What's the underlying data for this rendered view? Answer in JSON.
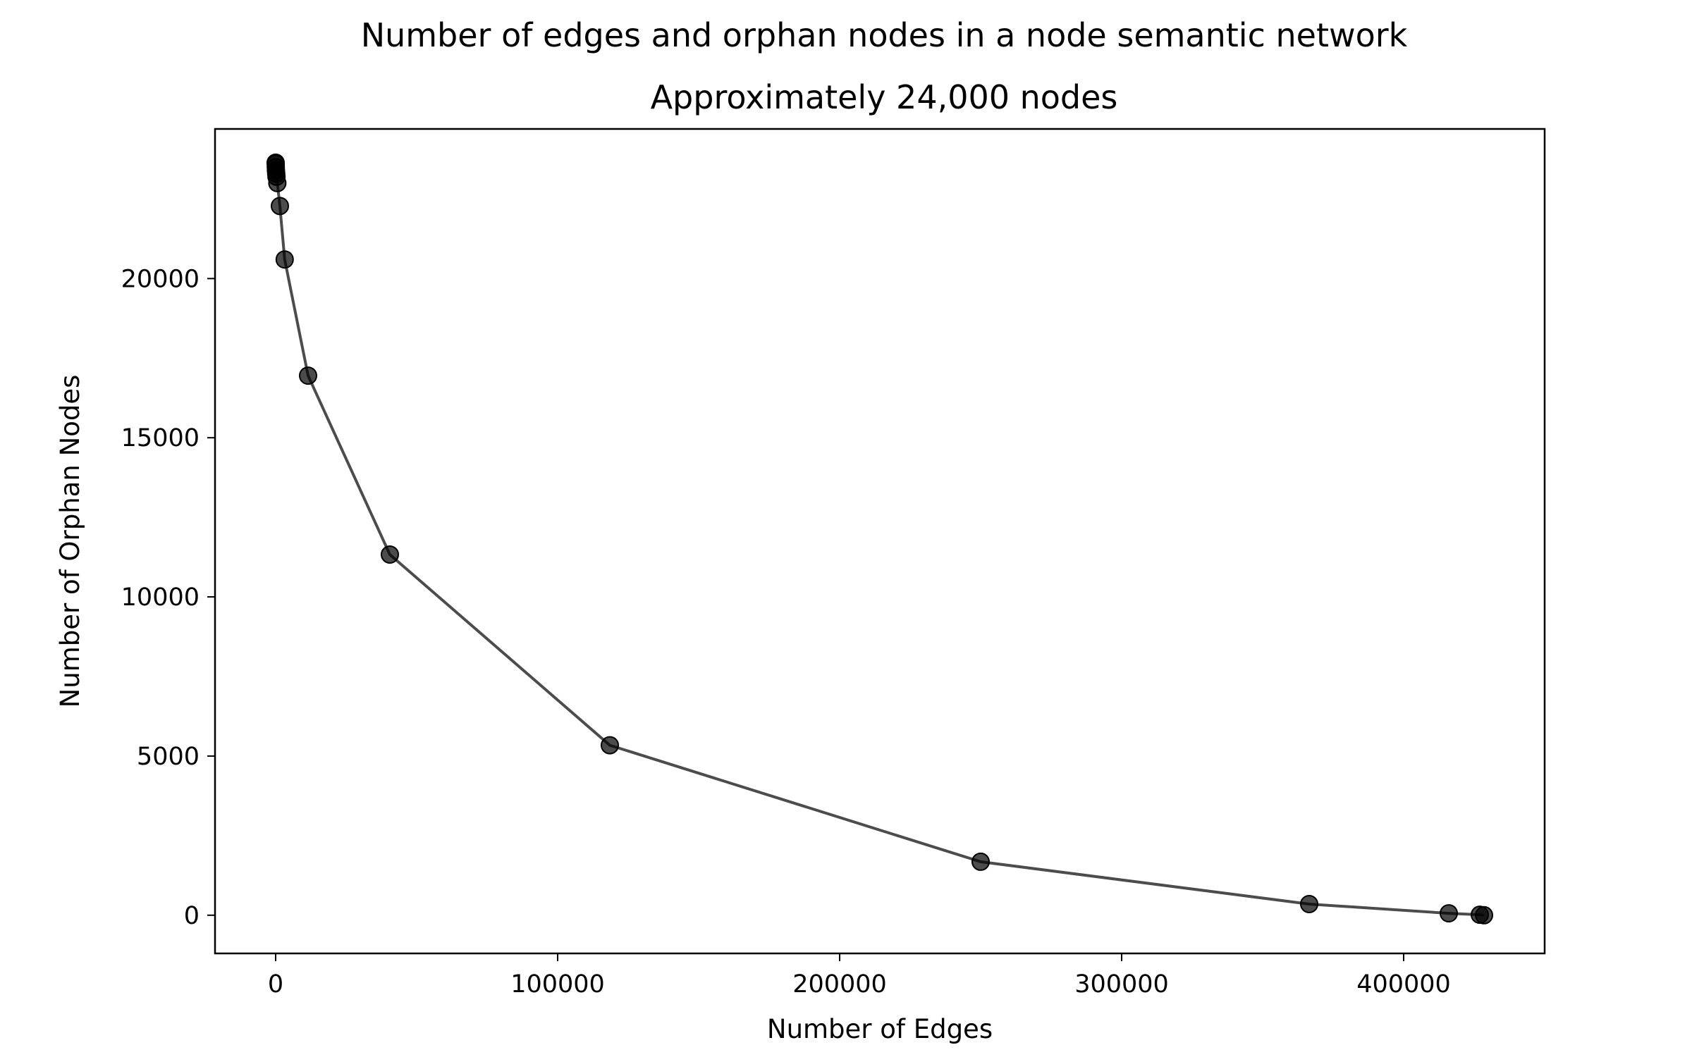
{
  "chart_data": {
    "type": "line",
    "title": "Number of edges and orphan nodes in a node semantic network",
    "subtitle": "Approximately 24,000 nodes",
    "xlabel": "Number of Edges",
    "ylabel": "Number of Orphan Nodes",
    "xlim": [
      -21500,
      450000
    ],
    "ylim": [
      -1200,
      24700
    ],
    "xticks": [
      0,
      100000,
      200000,
      300000,
      400000
    ],
    "xtick_labels": [
      "0",
      "100000",
      "200000",
      "300000",
      "400000"
    ],
    "yticks": [
      0,
      5000,
      10000,
      15000,
      20000
    ],
    "ytick_labels": [
      "0",
      "5000",
      "10000",
      "15000",
      "20000"
    ],
    "grid": false,
    "legend": "none",
    "series": [
      {
        "color": "#000000",
        "marker": "circle",
        "x": [
          0,
          20,
          50,
          100,
          200,
          300,
          600,
          1500,
          3200,
          11500,
          40500,
          118500,
          250000,
          366500,
          416000,
          427000,
          428500
        ],
        "y": [
          23640,
          23600,
          23500,
          23400,
          23300,
          23200,
          23000,
          22280,
          20600,
          16950,
          11330,
          5340,
          1680,
          350,
          60,
          15,
          0
        ]
      }
    ]
  }
}
